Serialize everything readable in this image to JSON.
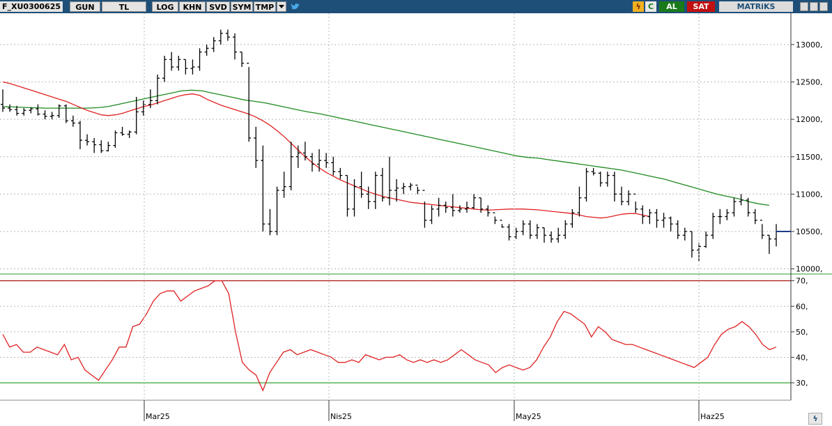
{
  "toolbar": {
    "symbol": "F_XU0300625",
    "buttons": [
      "GUN",
      "TL",
      "LOG",
      "KHN",
      "SVD",
      "SYM",
      "TMP"
    ],
    "icons": [
      "chevron-down-icon",
      "twitter-bird-icon",
      "lightning-icon",
      "refresh-icon"
    ],
    "al_label": "AL",
    "sat_label": "SAT",
    "brand": "MATRiKS",
    "colors": {
      "bar": "#1e4f78",
      "al": "#1a7a1a",
      "sat": "#c01010"
    }
  },
  "chart_data": [
    {
      "type": "ohlc",
      "x_ticks": [
        "Mar25",
        "Nis25",
        "May25",
        "Haz25"
      ],
      "y_ticks": [
        "10000,",
        "10500,",
        "11000,",
        "11500,",
        "12000,",
        "12500,",
        "13000,"
      ],
      "ylim": [
        9950,
        13400
      ],
      "grid": true,
      "last_price": 10500,
      "bars": [
        [
          12200,
          12400,
          12100,
          12150
        ],
        [
          12150,
          12200,
          12100,
          12130
        ],
        [
          12130,
          12180,
          12050,
          12080
        ],
        [
          12080,
          12150,
          12050,
          12120
        ],
        [
          12120,
          12160,
          12080,
          12140
        ],
        [
          12140,
          12200,
          12050,
          12070
        ],
        [
          12070,
          12120,
          12000,
          12040
        ],
        [
          12040,
          12100,
          12000,
          12050
        ],
        [
          12050,
          12200,
          12020,
          12180
        ],
        [
          12180,
          12200,
          11950,
          11980
        ],
        [
          11980,
          12050,
          11900,
          11950
        ],
        [
          11950,
          11980,
          11600,
          11720
        ],
        [
          11720,
          11800,
          11650,
          11700
        ],
        [
          11700,
          11750,
          11550,
          11660
        ],
        [
          11660,
          11720,
          11550,
          11580
        ],
        [
          11580,
          11700,
          11570,
          11650
        ],
        [
          11650,
          11850,
          11620,
          11820
        ],
        [
          11820,
          11900,
          11780,
          11800
        ],
        [
          11800,
          11850,
          11750,
          11830
        ],
        [
          11830,
          12300,
          11800,
          12100
        ],
        [
          12100,
          12250,
          12050,
          12200
        ],
        [
          12200,
          12400,
          12150,
          12250
        ],
        [
          12250,
          12600,
          12200,
          12550
        ],
        [
          12550,
          12850,
          12500,
          12800
        ],
        [
          12800,
          12900,
          12650,
          12700
        ],
        [
          12700,
          12850,
          12650,
          12800
        ],
        [
          12800,
          12800,
          12600,
          12680
        ],
        [
          12680,
          12800,
          12600,
          12700
        ],
        [
          12700,
          12950,
          12650,
          12900
        ],
        [
          12900,
          13000,
          12850,
          12950
        ],
        [
          12950,
          13100,
          12900,
          13050
        ],
        [
          13050,
          13200,
          13000,
          13150
        ],
        [
          13150,
          13200,
          13050,
          13100
        ],
        [
          13100,
          13150,
          12800,
          12900
        ],
        [
          12900,
          12900,
          12700,
          12750
        ],
        [
          12750,
          12700,
          11700,
          11750
        ],
        [
          11750,
          11900,
          11350,
          11450
        ],
        [
          11450,
          11650,
          10500,
          10600
        ],
        [
          10600,
          10800,
          10450,
          10500
        ],
        [
          10500,
          11100,
          10450,
          11050
        ],
        [
          11050,
          11300,
          10950,
          11100
        ],
        [
          11100,
          11700,
          11050,
          11500
        ],
        [
          11500,
          11650,
          11350,
          11550
        ],
        [
          11550,
          11700,
          11450,
          11500
        ],
        [
          11500,
          11550,
          11300,
          11400
        ],
        [
          11400,
          11600,
          11300,
          11450
        ],
        [
          11450,
          11550,
          11350,
          11420
        ],
        [
          11420,
          11500,
          11250,
          11300
        ],
        [
          11300,
          11350,
          11200,
          11250
        ],
        [
          11250,
          11250,
          10700,
          10800
        ],
        [
          10800,
          11200,
          10700,
          11100
        ],
        [
          11100,
          11300,
          10950,
          11000
        ],
        [
          11000,
          11100,
          10800,
          10900
        ],
        [
          10900,
          11300,
          10800,
          11250
        ],
        [
          11250,
          11350,
          10900,
          10950
        ],
        [
          10950,
          11500,
          10850,
          11050
        ],
        [
          11050,
          11200,
          10900,
          11080
        ],
        [
          11080,
          11150,
          11000,
          11100
        ],
        [
          11100,
          11150,
          11050,
          11120
        ],
        [
          11120,
          11100,
          11000,
          11050
        ],
        [
          11050,
          10900,
          10550,
          10650
        ],
        [
          10650,
          10850,
          10600,
          10800
        ],
        [
          10800,
          10950,
          10700,
          10850
        ],
        [
          10850,
          10900,
          10750,
          10820
        ],
        [
          10820,
          11000,
          10700,
          10780
        ],
        [
          10780,
          10850,
          10750,
          10800
        ],
        [
          10800,
          10900,
          10750,
          10820
        ],
        [
          10820,
          11000,
          10800,
          10950
        ],
        [
          10950,
          10950,
          10750,
          10800
        ],
        [
          10800,
          10850,
          10700,
          10750
        ],
        [
          10750,
          10700,
          10600,
          10650
        ],
        [
          10650,
          10600,
          10550,
          10560
        ],
        [
          10560,
          10600,
          10380,
          10430
        ],
        [
          10430,
          10550,
          10400,
          10500
        ],
        [
          10500,
          10650,
          10450,
          10600
        ],
        [
          10600,
          10650,
          10400,
          10450
        ],
        [
          10450,
          10600,
          10400,
          10550
        ],
        [
          10550,
          10550,
          10350,
          10450
        ],
        [
          10450,
          10500,
          10350,
          10400
        ],
        [
          10400,
          10550,
          10350,
          10450
        ],
        [
          10450,
          10650,
          10400,
          10600
        ],
        [
          10600,
          10800,
          10550,
          10750
        ],
        [
          10750,
          11100,
          10700,
          10950
        ],
        [
          10950,
          11350,
          10900,
          11300
        ],
        [
          11300,
          11350,
          11250,
          11280
        ],
        [
          11280,
          11300,
          11100,
          11150
        ],
        [
          11150,
          11300,
          11100,
          11250
        ],
        [
          11250,
          11300,
          10900,
          11000
        ],
        [
          11000,
          11100,
          10850,
          10900
        ],
        [
          10900,
          11050,
          10850,
          11000
        ],
        [
          11000,
          10900,
          10750,
          10800
        ],
        [
          10800,
          10850,
          10600,
          10700
        ],
        [
          10700,
          10800,
          10600,
          10750
        ],
        [
          10750,
          10800,
          10550,
          10650
        ],
        [
          10650,
          10750,
          10550,
          10680
        ],
        [
          10680,
          10700,
          10500,
          10600
        ],
        [
          10600,
          10650,
          10400,
          10450
        ],
        [
          10450,
          10550,
          10380,
          10500
        ],
        [
          10500,
          10500,
          10150,
          10250
        ],
        [
          10250,
          10350,
          10100,
          10300
        ],
        [
          10300,
          10500,
          10280,
          10450
        ],
        [
          10450,
          10750,
          10400,
          10700
        ],
        [
          10700,
          10800,
          10600,
          10700
        ],
        [
          10700,
          10800,
          10650,
          10750
        ],
        [
          10750,
          10950,
          10700,
          10900
        ],
        [
          10900,
          11000,
          10850,
          10920
        ],
        [
          10920,
          10950,
          10700,
          10750
        ],
        [
          10750,
          10800,
          10600,
          10650
        ],
        [
          10650,
          10600,
          10400,
          10450
        ],
        [
          10450,
          10450,
          10200,
          10400
        ],
        [
          10400,
          10600,
          10300,
          10500
        ]
      ],
      "ma_red": [
        12500,
        12480,
        12450,
        12420,
        12390,
        12360,
        12330,
        12300,
        12270,
        12240,
        12200,
        12160,
        12120,
        12090,
        12060,
        12050,
        12060,
        12080,
        12110,
        12140,
        12170,
        12190,
        12220,
        12250,
        12280,
        12310,
        12330,
        12340,
        12320,
        12270,
        12230,
        12190,
        12160,
        12130,
        12100,
        12070,
        12030,
        11980,
        11920,
        11850,
        11770,
        11680,
        11590,
        11500,
        11420,
        11350,
        11290,
        11240,
        11190,
        11150,
        11110,
        11070,
        11030,
        11000,
        10970,
        10950,
        10930,
        10910,
        10890,
        10880,
        10870,
        10860,
        10850,
        10840,
        10830,
        10820,
        10810,
        10800,
        10790,
        10785,
        10790,
        10795,
        10800,
        10800,
        10800,
        10795,
        10790,
        10780,
        10770,
        10760,
        10750,
        10740,
        10720,
        10700,
        10690,
        10680,
        10690,
        10710,
        10730,
        10740,
        10740,
        10720,
        10700
      ],
      "ma_green": [
        12170,
        12165,
        12160,
        12155,
        12150,
        12150,
        12150,
        12150,
        12150,
        12155,
        12170,
        12200,
        12230,
        12260,
        12290,
        12320,
        12350,
        12380,
        12390,
        12380,
        12350,
        12320,
        12290,
        12260,
        12240,
        12220,
        12190,
        12160,
        12130,
        12100,
        12080,
        12050,
        12020,
        11990,
        11960,
        11930,
        11900,
        11870,
        11840,
        11810,
        11780,
        11750,
        11720,
        11690,
        11660,
        11630,
        11600,
        11570,
        11540,
        11510,
        11490,
        11480,
        11460,
        11440,
        11420,
        11400,
        11380,
        11360,
        11340,
        11320,
        11290,
        11260,
        11230,
        11200,
        11160,
        11120,
        11080,
        11040,
        11000,
        10970,
        10940,
        10900,
        10870,
        10850
      ]
    },
    {
      "type": "line",
      "y_ticks": [
        "30,",
        "40,",
        "50,",
        "60,",
        "70,"
      ],
      "ylim": [
        24,
        71
      ],
      "levels": {
        "upper": 70,
        "lower": 30
      },
      "values": [
        49,
        44,
        45,
        42,
        42,
        44,
        43,
        42,
        41,
        45,
        39,
        40,
        35,
        33,
        31,
        35,
        39,
        44,
        44,
        52,
        53,
        57,
        62,
        65,
        66,
        66,
        62,
        64,
        66,
        67,
        68,
        70,
        70,
        65,
        50,
        38,
        35,
        33,
        27,
        34,
        38,
        42,
        43,
        41,
        42,
        43,
        42,
        41,
        40,
        38,
        38,
        39,
        38,
        41,
        40,
        39,
        40,
        40,
        41,
        39,
        38,
        39,
        38,
        39,
        38,
        39,
        41,
        43,
        41,
        39,
        38,
        37,
        34,
        36,
        37,
        36,
        35,
        36,
        39,
        44,
        48,
        54,
        58,
        57,
        55,
        53,
        48,
        52,
        50,
        47,
        46,
        45,
        45,
        44,
        43,
        42,
        41,
        40,
        39,
        38,
        37,
        36,
        38,
        40,
        45,
        49,
        51,
        52,
        54,
        52,
        49,
        45,
        43,
        44
      ]
    }
  ]
}
